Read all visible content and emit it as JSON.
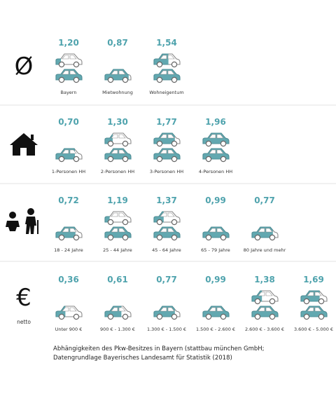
{
  "sections": [
    {
      "symbol": "Ø",
      "items": [
        {
          "value": 1.2,
          "label": "1,20",
          "category": "Bayern"
        },
        {
          "value": 0.87,
          "label": "0,87",
          "category": "Mietwohnung"
        },
        {
          "value": 1.54,
          "label": "1,54",
          "category": "Wohneigentum"
        }
      ]
    },
    {
      "items": [
        {
          "value": 0.7,
          "label": "0,70",
          "category": "1-Personen HH"
        },
        {
          "value": 1.3,
          "label": "1,30",
          "category": "2-Personen HH"
        },
        {
          "value": 1.77,
          "label": "1,77",
          "category": "3-Personen HH"
        },
        {
          "value": 1.96,
          "label": "1,96",
          "category": "4-Personen HH"
        }
      ]
    },
    {
      "items": [
        {
          "value": 0.72,
          "label": "0,72",
          "category": "18 - 24 Jahre"
        },
        {
          "value": 1.19,
          "label": "1,19",
          "category": "25 - 44 Jahre"
        },
        {
          "value": 1.37,
          "label": "1,37",
          "category": "45 - 64 Jahre"
        },
        {
          "value": 0.99,
          "label": "0,99",
          "category": "65 - 79 Jahre"
        },
        {
          "value": 0.77,
          "label": "0,77",
          "category": "80 Jahre und mehr"
        }
      ]
    },
    {
      "symbol": "€",
      "note": "netto",
      "items": [
        {
          "value": 0.36,
          "label": "0,36",
          "category": "Unter 900 €"
        },
        {
          "value": 0.61,
          "label": "0,61",
          "category": "900 € - 1.300 €"
        },
        {
          "value": 0.77,
          "label": "0,77",
          "category": "1.300 € - 1.500 €"
        },
        {
          "value": 0.99,
          "label": "0,99",
          "category": "1.500 € - 2.600 €"
        },
        {
          "value": 1.38,
          "label": "1,38",
          "category": "2.600 € - 3.600 €"
        },
        {
          "value": 1.69,
          "label": "1,69",
          "category": "3.600 € - 5.000 €"
        }
      ]
    }
  ],
  "caption": [
    "Abhängigkeiten des Pkw-Besitzes in Bayern (stattbau münchen GmbH;",
    "Datengrundlage Bayerisches Landesamt für Statistik (2018)"
  ]
}
